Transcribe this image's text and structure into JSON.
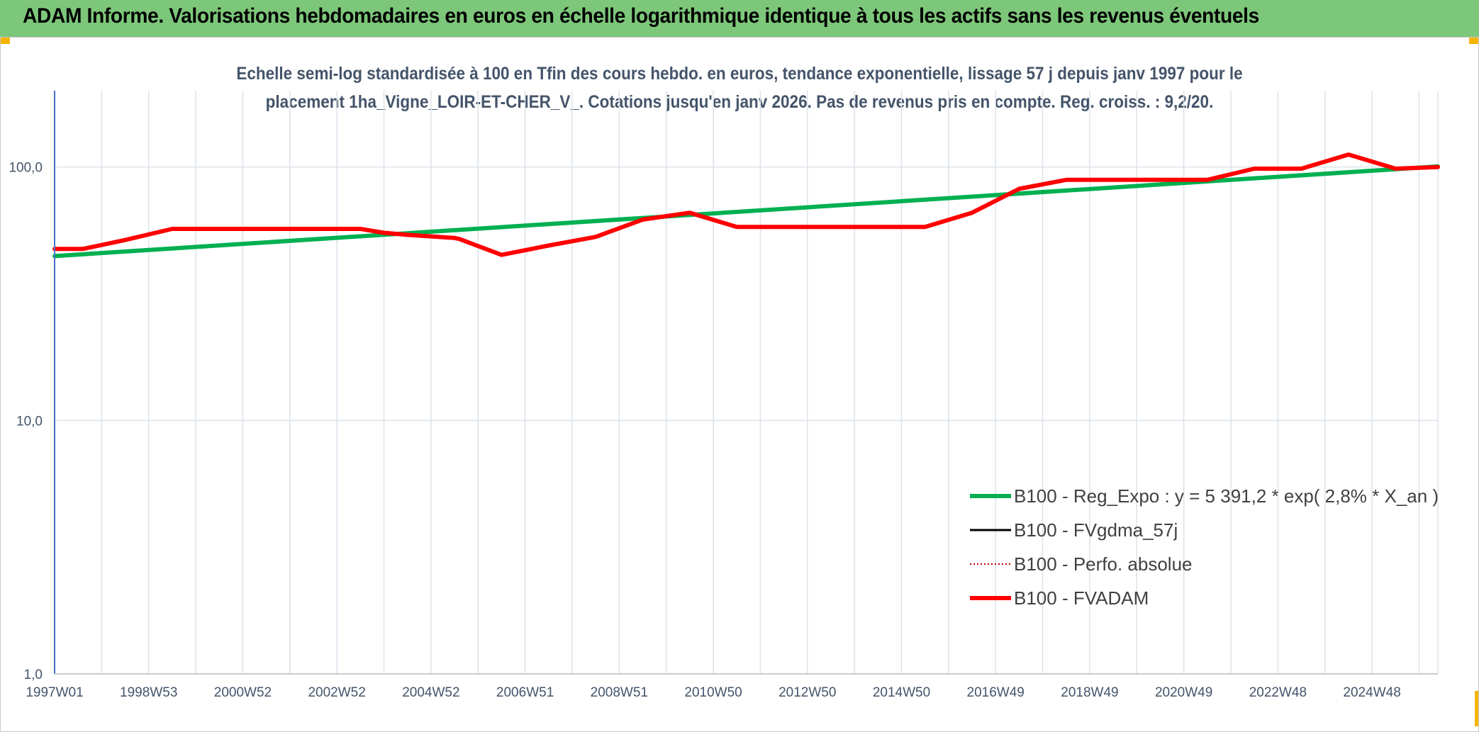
{
  "header": {
    "title": "ADAM Informe. Valorisations hebdomadaires en euros en échelle logarithmique identique à tous les actifs sans les revenus éventuels"
  },
  "colors": {
    "header_bg": "#7dc77a",
    "corner_accent": "#f5b400",
    "reg_expo": "#00b050",
    "fvgdma": "#000000",
    "perfo": "#c00000",
    "fvadam": "#ff0000",
    "axis": "#4472c4",
    "grid": "#dde3ea"
  },
  "chart_data": {
    "type": "line",
    "title_line1": "Echelle semi-log standardisée à 100 en Tfin des cours hebdo. en euros, tendance exponentielle, lissage 57 j depuis janv 1997 pour le",
    "title_line2": "placement 1ha_Vigne_LOIR-ET-CHER_V_. Cotations jusqu'en janv 2026. Pas de revenus pris en compte. Reg. croiss. : 9,2/20.",
    "y_scale": "log",
    "ylim": [
      1,
      200
    ],
    "y_ticks": [
      {
        "value": 1,
        "label": "1,0"
      },
      {
        "value": 10,
        "label": "10,0"
      },
      {
        "value": 100,
        "label": "100,0"
      }
    ],
    "xlim": [
      0,
      29.4
    ],
    "x_ticks": [
      {
        "x": 0,
        "label": "1997W01"
      },
      {
        "x": 2,
        "label": "1998W53"
      },
      {
        "x": 4,
        "label": "2000W52"
      },
      {
        "x": 6,
        "label": "2002W52"
      },
      {
        "x": 8,
        "label": "2004W52"
      },
      {
        "x": 10,
        "label": "2006W51"
      },
      {
        "x": 12,
        "label": "2008W51"
      },
      {
        "x": 14,
        "label": "2010W50"
      },
      {
        "x": 16,
        "label": "2012W50"
      },
      {
        "x": 18,
        "label": "2014W50"
      },
      {
        "x": 20,
        "label": "2016W49"
      },
      {
        "x": 22,
        "label": "2018W49"
      },
      {
        "x": 24,
        "label": "2020W49"
      },
      {
        "x": 26,
        "label": "2022W48"
      },
      {
        "x": 28,
        "label": "2024W48"
      }
    ],
    "vertical_grid_step": 1,
    "legend_position": "center-right",
    "series": [
      {
        "name": "B100 - Reg_Expo : y = 5 391,2 * exp( 2,8% *  X_an )",
        "color": "#00b050",
        "style": "solid",
        "width": 6,
        "points": [
          [
            0,
            44.5
          ],
          [
            29.4,
            100.5
          ]
        ]
      },
      {
        "name": "B100 - FVgdma_57j",
        "color": "#000000",
        "style": "solid",
        "width": 3,
        "points": []
      },
      {
        "name": "B100 - Perfo. absolue",
        "color": "#c00000",
        "style": "dotted",
        "width": 2,
        "points": []
      },
      {
        "name": "B100 - FVADAM",
        "color": "#ff0000",
        "style": "solid",
        "width": 6,
        "points": [
          [
            0,
            47.5
          ],
          [
            0.6,
            47.5
          ],
          [
            1.5,
            51.5
          ],
          [
            2.5,
            57
          ],
          [
            6.5,
            57
          ],
          [
            7,
            55
          ],
          [
            7.5,
            54
          ],
          [
            8.5,
            52.5
          ],
          [
            8.6,
            52
          ],
          [
            9.5,
            45
          ],
          [
            10.5,
            49
          ],
          [
            11.5,
            53
          ],
          [
            12.5,
            62
          ],
          [
            13.5,
            66
          ],
          [
            14.5,
            58
          ],
          [
            18.5,
            58
          ],
          [
            19.5,
            66
          ],
          [
            20.5,
            82
          ],
          [
            21.5,
            89
          ],
          [
            24.5,
            89
          ],
          [
            25.5,
            98.5
          ],
          [
            26.5,
            98.5
          ],
          [
            27.5,
            112
          ],
          [
            28.5,
            98.5
          ],
          [
            29.4,
            100
          ]
        ]
      }
    ]
  }
}
